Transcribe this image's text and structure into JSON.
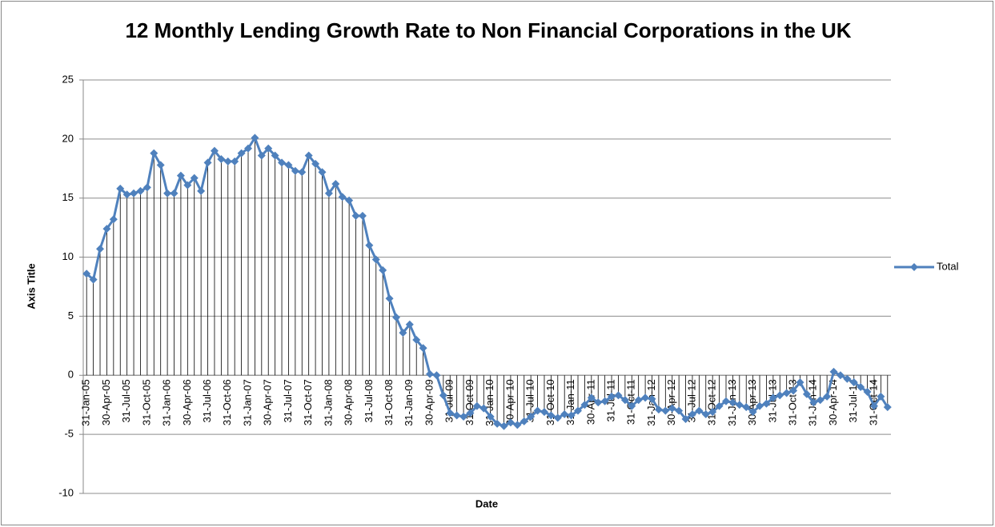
{
  "chart_data": {
    "type": "line",
    "title": "12 Monthly Lending Growth Rate to Non Financial Corporations in the UK",
    "x_label": "Date",
    "y_label": "Axis Title",
    "categories": [
      "31-Jan-05",
      null,
      null,
      "30-Apr-05",
      null,
      null,
      "31-Jul-05",
      null,
      null,
      "31-Oct-05",
      null,
      null,
      "31-Jan-06",
      null,
      null,
      "30-Apr-06",
      null,
      null,
      "31-Jul-06",
      null,
      null,
      "31-Oct-06",
      null,
      null,
      "31-Jan-07",
      null,
      null,
      "30-Apr-07",
      null,
      null,
      "31-Jul-07",
      null,
      null,
      "31-Oct-07",
      null,
      null,
      "31-Jan-08",
      null,
      null,
      "30-Apr-08",
      null,
      null,
      "31-Jul-08",
      null,
      null,
      "31-Oct-08",
      null,
      null,
      "31-Jan-09",
      null,
      null,
      "30-Apr-09",
      null,
      null,
      "31-Jul-09",
      null,
      null,
      "31-Oct-09",
      null,
      null,
      "31-Jan-10",
      null,
      null,
      "30-Apr-10",
      null,
      null,
      "31-Jul-10",
      null,
      null,
      "31-Oct-10",
      null,
      null,
      "31-Jan-11",
      null,
      null,
      "30-Apr-11",
      null,
      null,
      "31-Jul-11",
      null,
      null,
      "31-Oct-11",
      null,
      null,
      "31-Jan-12",
      null,
      null,
      "30-Apr-12",
      null,
      null,
      "31-Jul-12",
      null,
      null,
      "31-Oct-12",
      null,
      null,
      "31-Jan-13",
      null,
      null,
      "30-Apr-13",
      null,
      null,
      "31-Jul-13",
      null,
      null,
      "31-Oct-13",
      null,
      null,
      "31-Jan-14",
      null,
      null,
      "30-Apr-14",
      null,
      null,
      "31-Jul-14",
      null,
      null,
      "31-Oct-14",
      null,
      null
    ],
    "series": [
      {
        "name": "Total",
        "color": "#4f81bd",
        "values": [
          8.6,
          8.1,
          10.7,
          12.4,
          13.2,
          15.8,
          15.3,
          15.4,
          15.6,
          15.9,
          18.8,
          17.8,
          15.4,
          15.4,
          16.9,
          16.1,
          16.7,
          15.6,
          18.0,
          19.0,
          18.3,
          18.1,
          18.1,
          18.8,
          19.2,
          20.1,
          18.6,
          19.2,
          18.6,
          18.0,
          17.8,
          17.3,
          17.2,
          18.6,
          17.9,
          17.2,
          15.4,
          16.2,
          15.1,
          14.8,
          13.5,
          13.5,
          11.0,
          9.8,
          8.9,
          6.5,
          4.9,
          3.6,
          4.3,
          3.0,
          2.3,
          0.1,
          0.0,
          -1.7,
          -3.2,
          -3.4,
          -3.5,
          -3.2,
          -2.6,
          -2.8,
          -3.5,
          -4.1,
          -4.3,
          -4.0,
          -4.2,
          -3.9,
          -3.5,
          -3.0,
          -3.1,
          -3.4,
          -3.6,
          -3.3,
          -3.4,
          -3.0,
          -2.5,
          -1.9,
          -2.3,
          -2.2,
          -1.8,
          -1.7,
          -2.1,
          -2.6,
          -2.1,
          -1.9,
          -2.0,
          -2.9,
          -3.0,
          -2.8,
          -3.0,
          -3.7,
          -3.3,
          -3.0,
          -3.3,
          -3.1,
          -2.6,
          -2.2,
          -2.3,
          -2.5,
          -2.7,
          -3.1,
          -2.6,
          -2.4,
          -1.9,
          -1.7,
          -1.5,
          -1.3,
          -0.6,
          -1.6,
          -2.3,
          -2.1,
          -1.8,
          0.3,
          0.0,
          -0.3,
          -0.6,
          -1.0,
          -1.4,
          -2.6,
          -1.8,
          -2.7
        ]
      }
    ],
    "ylim": [
      -10,
      25
    ],
    "yticks": [
      -10,
      -5,
      0,
      5,
      10,
      15,
      20,
      25
    ],
    "grid": true,
    "drop_lines": true,
    "legend": "right"
  }
}
